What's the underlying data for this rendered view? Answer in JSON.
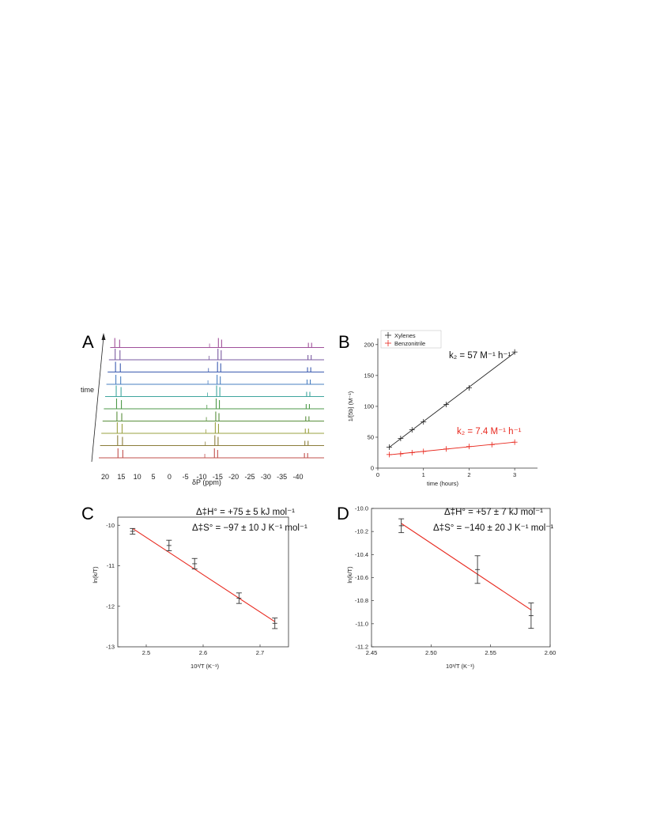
{
  "chart_data": [
    {
      "panel": "A",
      "type": "line",
      "xlabel": "δP (ppm)",
      "x_ticks": [
        "20",
        "15",
        "10",
        "5",
        "0",
        "-5",
        "-10",
        "-15",
        "-20",
        "-25",
        "-30",
        "-35",
        "-40"
      ],
      "time_label": "time",
      "trace_colors": [
        "#c0504d",
        "#8b7d3a",
        "#9aa040",
        "#5a8f3c",
        "#4d9a4a",
        "#3fa69e",
        "#4a7fc1",
        "#3b5bb0",
        "#7a5aa0",
        "#a0509a"
      ],
      "peak_groups_ppm": [
        [
          16,
          14.5
        ],
        [
          -14,
          -15
        ],
        [
          -42,
          -43
        ]
      ]
    },
    {
      "panel": "B",
      "type": "scatter",
      "xlabel": "time (hours)",
      "ylabel": "1/[5b] (M⁻¹)",
      "xlim": [
        0,
        3.5
      ],
      "ylim": [
        0,
        210
      ],
      "x_ticks": [
        "0",
        "1",
        "2",
        "3"
      ],
      "y_ticks": [
        "0",
        "50",
        "100",
        "150",
        "200"
      ],
      "legend_position": "top-left",
      "series": [
        {
          "name": "Xylenes",
          "color": "#222222",
          "x": [
            0.25,
            0.5,
            0.75,
            1.0,
            1.5,
            2.0,
            3.0
          ],
          "y": [
            34,
            48,
            62,
            75,
            103,
            130,
            188
          ]
        },
        {
          "name": "Benzonitrile",
          "color": "#e8281e",
          "x": [
            0.25,
            0.5,
            0.75,
            1.0,
            1.5,
            2.0,
            2.5,
            3.0
          ],
          "y": [
            22,
            23,
            25,
            27,
            31,
            35,
            38,
            42
          ]
        }
      ],
      "annotations": [
        {
          "text": "k₂ = 57 M⁻¹ h⁻¹",
          "color": "#111111"
        },
        {
          "text": "k₂ = 7.4 M⁻¹ h⁻¹",
          "color": "#e8281e"
        }
      ]
    },
    {
      "panel": "C",
      "type": "scatter",
      "xlabel": "10³/T (K⁻¹)",
      "ylabel": "ln(k/T)",
      "xlim": [
        2.45,
        2.75
      ],
      "ylim": [
        -13,
        -9.8
      ],
      "x_ticks": [
        "2.5",
        "2.6",
        "2.7"
      ],
      "y_ticks": [
        "-10",
        "-11",
        "-12",
        "-13"
      ],
      "x": [
        2.476,
        2.54,
        2.585,
        2.663,
        2.726
      ],
      "y": [
        -10.15,
        -10.5,
        -10.95,
        -11.8,
        -12.42
      ],
      "yerr": [
        0.07,
        0.13,
        0.13,
        0.13,
        0.13
      ],
      "fit": {
        "x": [
          2.476,
          2.726
        ],
        "y": [
          -10.08,
          -12.38
        ],
        "color": "#e8281e"
      },
      "annotations": [
        {
          "text": "Δ‡H° = +75 ± 5 kJ mol⁻¹"
        },
        {
          "text": "Δ‡S° = −97 ± 10 J K⁻¹ mol⁻¹"
        }
      ]
    },
    {
      "panel": "D",
      "type": "scatter",
      "xlabel": "10³/T (K⁻¹)",
      "ylabel": "ln(k/T)",
      "xlim": [
        2.45,
        2.6
      ],
      "ylim": [
        -11.2,
        -10.0
      ],
      "x_ticks": [
        "2.45",
        "2.50",
        "2.55",
        "2.60"
      ],
      "y_ticks": [
        "-10.0",
        "-10.2",
        "-10.4",
        "-10.6",
        "-10.8",
        "-11.0",
        "-11.2"
      ],
      "x": [
        2.475,
        2.539,
        2.584
      ],
      "y": [
        -10.15,
        -10.53,
        -10.93
      ],
      "yerr": [
        0.06,
        0.12,
        0.11
      ],
      "fit": {
        "x": [
          2.475,
          2.584
        ],
        "y": [
          -10.13,
          -10.88
        ],
        "color": "#e8281e"
      },
      "annotations": [
        {
          "text": "Δ‡H° = +57 ± 7 kJ mol⁻¹"
        },
        {
          "text": "Δ‡S° = −140 ± 20 J K⁻¹ mol⁻¹"
        }
      ]
    }
  ]
}
